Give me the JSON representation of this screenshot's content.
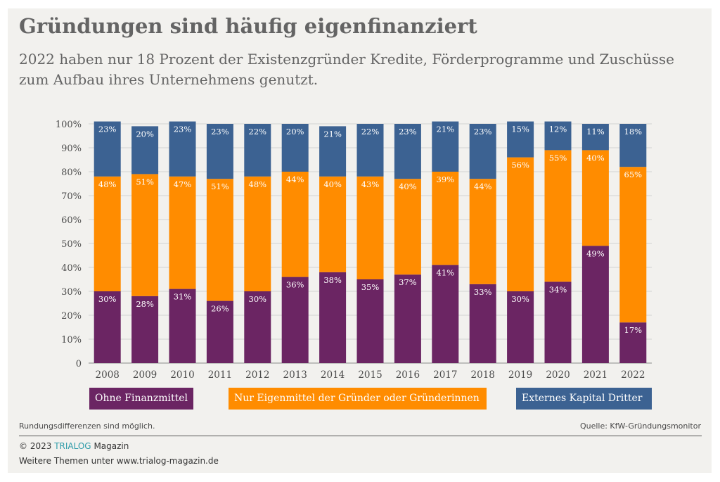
{
  "header": {
    "title": "Gründungen sind häufig eigenfinanziert",
    "subtitle": "2022 haben nur 18 Prozent der Existenzgründer Kredite, Förderprogramme und Zuschüsse zum Aufbau ihres Unternehmens genutzt."
  },
  "chart_data": {
    "type": "bar",
    "stacked": true,
    "categories": [
      "2008",
      "2009",
      "2010",
      "2011",
      "2012",
      "2013",
      "2014",
      "2015",
      "2016",
      "2017",
      "2018",
      "2019",
      "2020",
      "2021",
      "2022"
    ],
    "series": [
      {
        "name": "Ohne Finanzmittel",
        "color": "#6b2563",
        "values": [
          30,
          28,
          31,
          26,
          30,
          36,
          38,
          35,
          37,
          41,
          33,
          30,
          34,
          49,
          17
        ]
      },
      {
        "name": "Nur Eigenmittel der Gründer oder Gründerinnen",
        "color": "#ff8c00",
        "values": [
          48,
          51,
          47,
          51,
          48,
          44,
          40,
          43,
          40,
          39,
          44,
          56,
          55,
          40,
          65
        ]
      },
      {
        "name": "Externes Kapital Dritter",
        "color": "#3c6292",
        "values": [
          23,
          20,
          23,
          23,
          22,
          20,
          21,
          22,
          23,
          21,
          23,
          15,
          12,
          11,
          18
        ]
      }
    ],
    "value_suffix": "%",
    "yticks": [
      "0",
      "10%",
      "20%",
      "30%",
      "40%",
      "50%",
      "60%",
      "70%",
      "80%",
      "90%",
      "100%"
    ],
    "ylim": [
      0,
      100
    ],
    "grid": true,
    "legend_position": "bottom"
  },
  "notes": {
    "rounding": "Rundungsdifferenzen sind möglich.",
    "source": "Quelle: KfW-Gründungsmonitor"
  },
  "footer": {
    "copyright_prefix": "© 2023",
    "brand": "TRIALOG",
    "copyright_suffix": "Magazin",
    "more": "Weitere Themen unter www.trialog-magazin.de"
  },
  "colors": {
    "background": "#f2f1ee",
    "text": "#646464",
    "brand": "#2e9ba8"
  }
}
